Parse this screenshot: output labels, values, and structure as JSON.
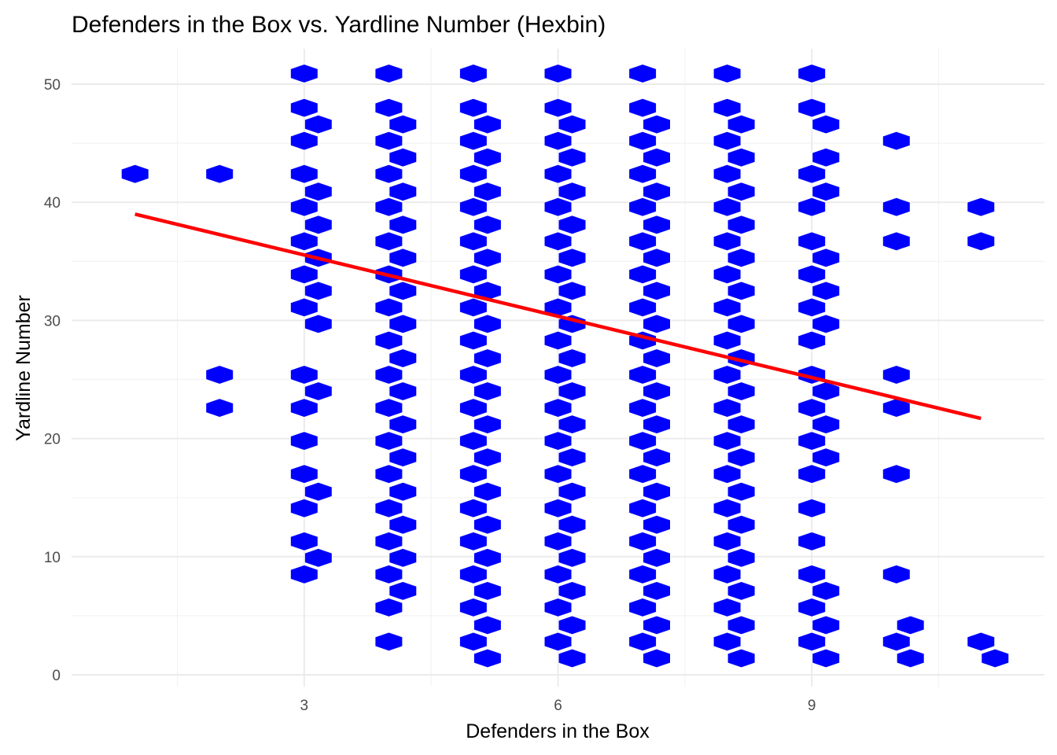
{
  "chart_data": {
    "type": "hexbin",
    "title": "Defenders in the Box vs. Yardline Number (Hexbin)",
    "xlabel": "Defenders in the Box",
    "ylabel": "Yardline Number",
    "xlim": [
      0.25,
      11.75
    ],
    "ylim": [
      -1,
      53
    ],
    "x_ticks": [
      3,
      6,
      9
    ],
    "x_tick_labels": [
      "3",
      "6",
      "9"
    ],
    "y_ticks": [
      0,
      10,
      20,
      30,
      40,
      50
    ],
    "y_tick_labels": [
      "0",
      "10",
      "20",
      "30",
      "40",
      "50"
    ],
    "grid": true,
    "hex_color": "#0000ff",
    "trend_color": "#ff0000",
    "trend_line": {
      "x": [
        1,
        11
      ],
      "y": [
        39.0,
        21.7
      ]
    },
    "hex_bins": [
      {
        "x": 1,
        "y": 42.4
      },
      {
        "x": 2,
        "y": 42.4
      },
      {
        "x": 2,
        "y": 25.4
      },
      {
        "x": 2,
        "y": 22.6
      },
      {
        "x": 3,
        "y": 50.9
      },
      {
        "x": 3,
        "y": 48.0
      },
      {
        "x": 3,
        "y": 45.2
      },
      {
        "x": 3,
        "y": 42.4
      },
      {
        "x": 3,
        "y": 39.6
      },
      {
        "x": 3,
        "y": 36.7
      },
      {
        "x": 3,
        "y": 33.9
      },
      {
        "x": 3,
        "y": 31.1
      },
      {
        "x": 3,
        "y": 25.4
      },
      {
        "x": 3,
        "y": 22.6
      },
      {
        "x": 3,
        "y": 19.8
      },
      {
        "x": 3,
        "y": 17.0
      },
      {
        "x": 3,
        "y": 14.1
      },
      {
        "x": 3,
        "y": 11.3
      },
      {
        "x": 3,
        "y": 8.5
      },
      {
        "x": 3.167,
        "y": 46.6
      },
      {
        "x": 3.167,
        "y": 40.9
      },
      {
        "x": 3.167,
        "y": 38.1
      },
      {
        "x": 3.167,
        "y": 35.3
      },
      {
        "x": 3.167,
        "y": 32.5
      },
      {
        "x": 3.167,
        "y": 29.7
      },
      {
        "x": 3.167,
        "y": 24.0
      },
      {
        "x": 3.167,
        "y": 15.5
      },
      {
        "x": 3.167,
        "y": 9.9
      },
      {
        "x": 4,
        "y": 50.9
      },
      {
        "x": 4,
        "y": 48.0
      },
      {
        "x": 4,
        "y": 45.2
      },
      {
        "x": 4,
        "y": 42.4
      },
      {
        "x": 4,
        "y": 39.6
      },
      {
        "x": 4,
        "y": 36.7
      },
      {
        "x": 4,
        "y": 33.9
      },
      {
        "x": 4,
        "y": 31.1
      },
      {
        "x": 4,
        "y": 28.3
      },
      {
        "x": 4,
        "y": 25.4
      },
      {
        "x": 4,
        "y": 22.6
      },
      {
        "x": 4,
        "y": 19.8
      },
      {
        "x": 4,
        "y": 17.0
      },
      {
        "x": 4,
        "y": 14.1
      },
      {
        "x": 4,
        "y": 11.3
      },
      {
        "x": 4,
        "y": 8.5
      },
      {
        "x": 4,
        "y": 5.7
      },
      {
        "x": 4,
        "y": 2.8
      },
      {
        "x": 4.167,
        "y": 46.6
      },
      {
        "x": 4.167,
        "y": 43.8
      },
      {
        "x": 4.167,
        "y": 40.9
      },
      {
        "x": 4.167,
        "y": 38.1
      },
      {
        "x": 4.167,
        "y": 35.3
      },
      {
        "x": 4.167,
        "y": 32.5
      },
      {
        "x": 4.167,
        "y": 29.7
      },
      {
        "x": 4.167,
        "y": 26.8
      },
      {
        "x": 4.167,
        "y": 24.0
      },
      {
        "x": 4.167,
        "y": 21.2
      },
      {
        "x": 4.167,
        "y": 18.4
      },
      {
        "x": 4.167,
        "y": 15.5
      },
      {
        "x": 4.167,
        "y": 12.7
      },
      {
        "x": 4.167,
        "y": 9.9
      },
      {
        "x": 4.167,
        "y": 7.1
      },
      {
        "x": 5,
        "y": 50.9
      },
      {
        "x": 5,
        "y": 48.0
      },
      {
        "x": 5,
        "y": 45.2
      },
      {
        "x": 5,
        "y": 42.4
      },
      {
        "x": 5,
        "y": 39.6
      },
      {
        "x": 5,
        "y": 36.7
      },
      {
        "x": 5,
        "y": 33.9
      },
      {
        "x": 5,
        "y": 31.1
      },
      {
        "x": 5,
        "y": 28.3
      },
      {
        "x": 5,
        "y": 25.4
      },
      {
        "x": 5,
        "y": 22.6
      },
      {
        "x": 5,
        "y": 19.8
      },
      {
        "x": 5,
        "y": 17.0
      },
      {
        "x": 5,
        "y": 14.1
      },
      {
        "x": 5,
        "y": 11.3
      },
      {
        "x": 5,
        "y": 8.5
      },
      {
        "x": 5,
        "y": 5.7
      },
      {
        "x": 5,
        "y": 2.8
      },
      {
        "x": 5.167,
        "y": 46.6
      },
      {
        "x": 5.167,
        "y": 43.8
      },
      {
        "x": 5.167,
        "y": 40.9
      },
      {
        "x": 5.167,
        "y": 38.1
      },
      {
        "x": 5.167,
        "y": 35.3
      },
      {
        "x": 5.167,
        "y": 32.5
      },
      {
        "x": 5.167,
        "y": 29.7
      },
      {
        "x": 5.167,
        "y": 26.8
      },
      {
        "x": 5.167,
        "y": 24.0
      },
      {
        "x": 5.167,
        "y": 21.2
      },
      {
        "x": 5.167,
        "y": 18.4
      },
      {
        "x": 5.167,
        "y": 15.5
      },
      {
        "x": 5.167,
        "y": 12.7
      },
      {
        "x": 5.167,
        "y": 9.9
      },
      {
        "x": 5.167,
        "y": 7.1
      },
      {
        "x": 5.167,
        "y": 4.2
      },
      {
        "x": 5.167,
        "y": 1.4
      },
      {
        "x": 6,
        "y": 50.9
      },
      {
        "x": 6,
        "y": 48.0
      },
      {
        "x": 6,
        "y": 45.2
      },
      {
        "x": 6,
        "y": 42.4
      },
      {
        "x": 6,
        "y": 39.6
      },
      {
        "x": 6,
        "y": 36.7
      },
      {
        "x": 6,
        "y": 33.9
      },
      {
        "x": 6,
        "y": 31.1
      },
      {
        "x": 6,
        "y": 28.3
      },
      {
        "x": 6,
        "y": 25.4
      },
      {
        "x": 6,
        "y": 22.6
      },
      {
        "x": 6,
        "y": 19.8
      },
      {
        "x": 6,
        "y": 17.0
      },
      {
        "x": 6,
        "y": 14.1
      },
      {
        "x": 6,
        "y": 11.3
      },
      {
        "x": 6,
        "y": 8.5
      },
      {
        "x": 6,
        "y": 5.7
      },
      {
        "x": 6,
        "y": 2.8
      },
      {
        "x": 6.167,
        "y": 46.6
      },
      {
        "x": 6.167,
        "y": 43.8
      },
      {
        "x": 6.167,
        "y": 40.9
      },
      {
        "x": 6.167,
        "y": 38.1
      },
      {
        "x": 6.167,
        "y": 35.3
      },
      {
        "x": 6.167,
        "y": 32.5
      },
      {
        "x": 6.167,
        "y": 29.7
      },
      {
        "x": 6.167,
        "y": 26.8
      },
      {
        "x": 6.167,
        "y": 24.0
      },
      {
        "x": 6.167,
        "y": 21.2
      },
      {
        "x": 6.167,
        "y": 18.4
      },
      {
        "x": 6.167,
        "y": 15.5
      },
      {
        "x": 6.167,
        "y": 12.7
      },
      {
        "x": 6.167,
        "y": 9.9
      },
      {
        "x": 6.167,
        "y": 7.1
      },
      {
        "x": 6.167,
        "y": 4.2
      },
      {
        "x": 6.167,
        "y": 1.4
      },
      {
        "x": 7,
        "y": 50.9
      },
      {
        "x": 7,
        "y": 48.0
      },
      {
        "x": 7,
        "y": 45.2
      },
      {
        "x": 7,
        "y": 42.4
      },
      {
        "x": 7,
        "y": 39.6
      },
      {
        "x": 7,
        "y": 36.7
      },
      {
        "x": 7,
        "y": 33.9
      },
      {
        "x": 7,
        "y": 31.1
      },
      {
        "x": 7,
        "y": 28.3
      },
      {
        "x": 7,
        "y": 25.4
      },
      {
        "x": 7,
        "y": 22.6
      },
      {
        "x": 7,
        "y": 19.8
      },
      {
        "x": 7,
        "y": 17.0
      },
      {
        "x": 7,
        "y": 14.1
      },
      {
        "x": 7,
        "y": 11.3
      },
      {
        "x": 7,
        "y": 8.5
      },
      {
        "x": 7,
        "y": 5.7
      },
      {
        "x": 7,
        "y": 2.8
      },
      {
        "x": 7.167,
        "y": 46.6
      },
      {
        "x": 7.167,
        "y": 43.8
      },
      {
        "x": 7.167,
        "y": 40.9
      },
      {
        "x": 7.167,
        "y": 38.1
      },
      {
        "x": 7.167,
        "y": 35.3
      },
      {
        "x": 7.167,
        "y": 32.5
      },
      {
        "x": 7.167,
        "y": 29.7
      },
      {
        "x": 7.167,
        "y": 26.8
      },
      {
        "x": 7.167,
        "y": 24.0
      },
      {
        "x": 7.167,
        "y": 21.2
      },
      {
        "x": 7.167,
        "y": 18.4
      },
      {
        "x": 7.167,
        "y": 15.5
      },
      {
        "x": 7.167,
        "y": 12.7
      },
      {
        "x": 7.167,
        "y": 9.9
      },
      {
        "x": 7.167,
        "y": 7.1
      },
      {
        "x": 7.167,
        "y": 4.2
      },
      {
        "x": 7.167,
        "y": 1.4
      },
      {
        "x": 8,
        "y": 50.9
      },
      {
        "x": 8,
        "y": 48.0
      },
      {
        "x": 8,
        "y": 45.2
      },
      {
        "x": 8,
        "y": 42.4
      },
      {
        "x": 8,
        "y": 39.6
      },
      {
        "x": 8,
        "y": 36.7
      },
      {
        "x": 8,
        "y": 33.9
      },
      {
        "x": 8,
        "y": 31.1
      },
      {
        "x": 8,
        "y": 28.3
      },
      {
        "x": 8,
        "y": 25.4
      },
      {
        "x": 8,
        "y": 22.6
      },
      {
        "x": 8,
        "y": 19.8
      },
      {
        "x": 8,
        "y": 17.0
      },
      {
        "x": 8,
        "y": 14.1
      },
      {
        "x": 8,
        "y": 11.3
      },
      {
        "x": 8,
        "y": 8.5
      },
      {
        "x": 8,
        "y": 5.7
      },
      {
        "x": 8,
        "y": 2.8
      },
      {
        "x": 8.167,
        "y": 46.6
      },
      {
        "x": 8.167,
        "y": 43.8
      },
      {
        "x": 8.167,
        "y": 40.9
      },
      {
        "x": 8.167,
        "y": 38.1
      },
      {
        "x": 8.167,
        "y": 35.3
      },
      {
        "x": 8.167,
        "y": 32.5
      },
      {
        "x": 8.167,
        "y": 29.7
      },
      {
        "x": 8.167,
        "y": 26.8
      },
      {
        "x": 8.167,
        "y": 24.0
      },
      {
        "x": 8.167,
        "y": 21.2
      },
      {
        "x": 8.167,
        "y": 18.4
      },
      {
        "x": 8.167,
        "y": 15.5
      },
      {
        "x": 8.167,
        "y": 12.7
      },
      {
        "x": 8.167,
        "y": 9.9
      },
      {
        "x": 8.167,
        "y": 7.1
      },
      {
        "x": 8.167,
        "y": 4.2
      },
      {
        "x": 8.167,
        "y": 1.4
      },
      {
        "x": 9,
        "y": 50.9
      },
      {
        "x": 9,
        "y": 48.0
      },
      {
        "x": 9,
        "y": 42.4
      },
      {
        "x": 9,
        "y": 39.6
      },
      {
        "x": 9,
        "y": 36.7
      },
      {
        "x": 9,
        "y": 33.9
      },
      {
        "x": 9,
        "y": 31.1
      },
      {
        "x": 9,
        "y": 28.3
      },
      {
        "x": 9,
        "y": 25.4
      },
      {
        "x": 9,
        "y": 22.6
      },
      {
        "x": 9,
        "y": 19.8
      },
      {
        "x": 9,
        "y": 17.0
      },
      {
        "x": 9,
        "y": 14.1
      },
      {
        "x": 9,
        "y": 11.3
      },
      {
        "x": 9,
        "y": 8.5
      },
      {
        "x": 9,
        "y": 5.7
      },
      {
        "x": 9,
        "y": 2.8
      },
      {
        "x": 9.167,
        "y": 46.6
      },
      {
        "x": 9.167,
        "y": 43.8
      },
      {
        "x": 9.167,
        "y": 40.9
      },
      {
        "x": 9.167,
        "y": 35.3
      },
      {
        "x": 9.167,
        "y": 32.5
      },
      {
        "x": 9.167,
        "y": 29.7
      },
      {
        "x": 9.167,
        "y": 24.0
      },
      {
        "x": 9.167,
        "y": 21.2
      },
      {
        "x": 9.167,
        "y": 18.4
      },
      {
        "x": 9.167,
        "y": 7.1
      },
      {
        "x": 9.167,
        "y": 4.2
      },
      {
        "x": 9.167,
        "y": 1.4
      },
      {
        "x": 10,
        "y": 45.2
      },
      {
        "x": 10,
        "y": 39.6
      },
      {
        "x": 10,
        "y": 36.7
      },
      {
        "x": 10,
        "y": 25.4
      },
      {
        "x": 10,
        "y": 22.6
      },
      {
        "x": 10,
        "y": 17.0
      },
      {
        "x": 10,
        "y": 8.5
      },
      {
        "x": 10,
        "y": 2.8
      },
      {
        "x": 10.167,
        "y": 4.2
      },
      {
        "x": 10.167,
        "y": 1.4
      },
      {
        "x": 11,
        "y": 39.6
      },
      {
        "x": 11,
        "y": 36.7
      },
      {
        "x": 11,
        "y": 2.8
      },
      {
        "x": 11.167,
        "y": 1.4
      }
    ]
  }
}
